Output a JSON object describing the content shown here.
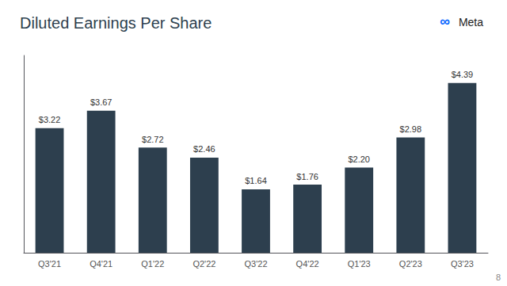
{
  "chart_data": {
    "type": "bar",
    "title": "Diluted Earnings Per Share",
    "categories": [
      "Q3'21",
      "Q4'21",
      "Q1'22",
      "Q2'22",
      "Q3'22",
      "Q4'22",
      "Q1'23",
      "Q2'23",
      "Q3'23"
    ],
    "values": [
      3.22,
      3.67,
      2.72,
      2.46,
      1.64,
      1.76,
      2.2,
      2.98,
      4.39
    ],
    "value_labels": [
      "$3.22",
      "$3.67",
      "$2.72",
      "$2.46",
      "$1.64",
      "$1.76",
      "$2.20",
      "$2.98",
      "$4.39"
    ],
    "data_labels": true,
    "color": "#2d3f4e",
    "ylim": [
      0,
      5.1
    ],
    "yticks": [],
    "tick_labels": "x",
    "grid": false,
    "annotations": [
      "∞",
      "Meta",
      "8"
    ]
  }
}
